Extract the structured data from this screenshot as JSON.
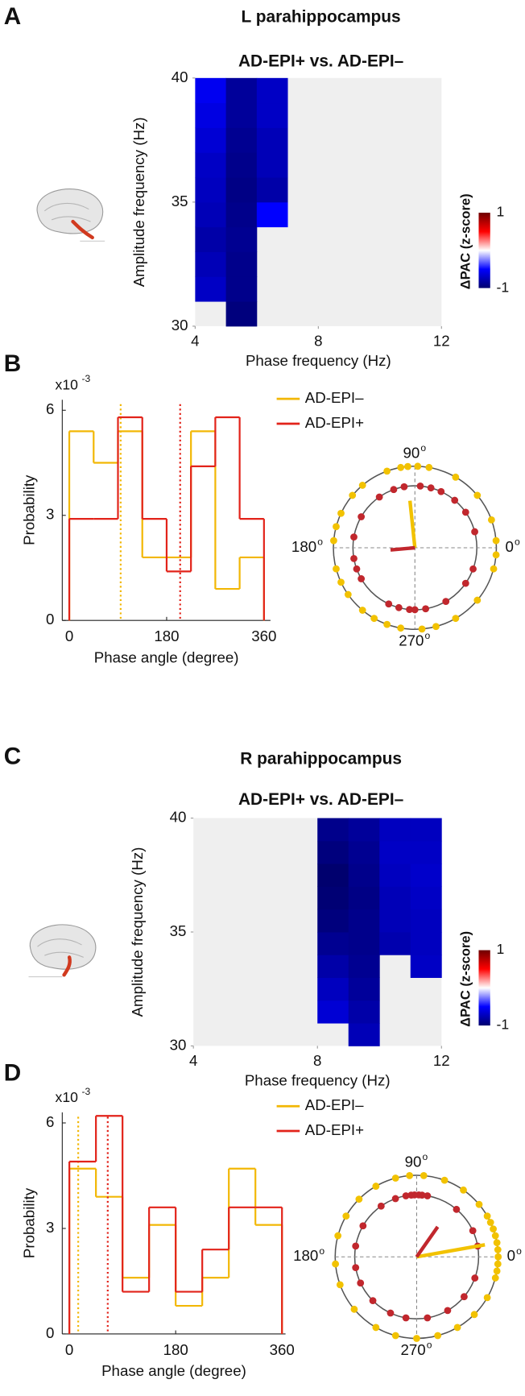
{
  "chart_data": [
    {
      "type": "heatmap",
      "panel": "A",
      "title": "L parahippocampus",
      "subtitle": "AD-EPI+ vs. AD-EPI–",
      "xlabel": "Phase frequency (Hz)",
      "ylabel": "Amplitude frequency (Hz)",
      "xbins": [
        4,
        5,
        6,
        7,
        8,
        9,
        10,
        11,
        12
      ],
      "ybins": [
        30,
        31,
        32,
        33,
        34,
        35,
        36,
        37,
        38,
        39,
        40
      ],
      "values": [
        [
          null,
          -0.95,
          null,
          null,
          null,
          null,
          null,
          null
        ],
        [
          -0.7,
          -0.9,
          null,
          null,
          null,
          null,
          null,
          null
        ],
        [
          -0.75,
          -0.9,
          null,
          null,
          null,
          null,
          null,
          null
        ],
        [
          -0.8,
          -0.88,
          null,
          null,
          null,
          null,
          null,
          null
        ],
        [
          -0.75,
          -0.9,
          -0.5,
          null,
          null,
          null,
          null,
          null
        ],
        [
          -0.72,
          -0.92,
          -0.8,
          null,
          null,
          null,
          null,
          null
        ],
        [
          -0.7,
          -0.9,
          -0.75,
          null,
          null,
          null,
          null,
          null
        ],
        [
          -0.65,
          -0.88,
          -0.75,
          null,
          null,
          null,
          null,
          null
        ],
        [
          -0.6,
          -0.85,
          -0.7,
          null,
          null,
          null,
          null,
          null
        ],
        [
          -0.55,
          -0.85,
          -0.7,
          null,
          null,
          null,
          null,
          null
        ]
      ],
      "xlim": [
        4,
        12
      ],
      "ylim": [
        30,
        40
      ],
      "xticks": [
        4,
        8,
        12
      ],
      "yticks": [
        30,
        35,
        40
      ],
      "colorbar": {
        "label": "ΔPAC (z-score)",
        "clim": [
          -1,
          1
        ],
        "ticks": [
          1,
          -1
        ]
      }
    },
    {
      "type": "histogram",
      "panel": "B",
      "xlabel": "Phase angle (degree)",
      "ylabel": "Probability",
      "y_multiplier": {
        "base": "x10",
        "exponent": "-3"
      },
      "bins": [
        0,
        45,
        90,
        135,
        180,
        225,
        270,
        315,
        360
      ],
      "series": [
        {
          "name": "AD-EPI–",
          "color": "#f2b705",
          "values": [
            5.4,
            4.5,
            5.4,
            1.8,
            1.8,
            5.4,
            0.9,
            1.8
          ],
          "mean": 95
        },
        {
          "name": "AD-EPI+",
          "color": "#e2231a",
          "values": [
            2.9,
            2.9,
            5.8,
            2.9,
            1.4,
            4.4,
            5.8,
            2.9
          ],
          "mean": 205
        }
      ],
      "xlim": [
        -13,
        372
      ],
      "ylim": [
        0,
        6.3
      ],
      "xticks": [
        0,
        180,
        360
      ],
      "yticks": [
        0,
        3,
        6
      ]
    },
    {
      "type": "polar",
      "angle_ticks": [
        90,
        180,
        270,
        0
      ],
      "tick_suffix": "o",
      "series": [
        {
          "color": "#f2c200",
          "angles": [
            5,
            20,
            40,
            60,
            80,
            88,
            95,
            100,
            110,
            130,
            140,
            155,
            165,
            175,
            195,
            205,
            215,
            230,
            240,
            250,
            260,
            275,
            285,
            300,
            320,
            345,
            355
          ],
          "mean_vector": {
            "angle": 96,
            "length": 0.58
          }
        },
        {
          "color": "#c1272d",
          "angles": [
            15,
            35,
            50,
            65,
            75,
            85,
            100,
            110,
            125,
            150,
            170,
            190,
            200,
            210,
            245,
            255,
            265,
            270,
            280,
            300,
            325,
            340
          ],
          "mean_vector": {
            "angle": 185,
            "length": 0.3
          }
        }
      ]
    },
    {
      "type": "heatmap",
      "panel": "C",
      "title": "R parahippocampus",
      "subtitle": "AD-EPI+ vs. AD-EPI–",
      "xlabel": "Phase frequency (Hz)",
      "ylabel": "Amplitude frequency (Hz)",
      "xbins": [
        4,
        5,
        6,
        7,
        8,
        9,
        10,
        11,
        12
      ],
      "ybins": [
        30,
        31,
        32,
        33,
        34,
        35,
        36,
        37,
        38,
        39,
        40
      ],
      "values": [
        [
          null,
          null,
          null,
          null,
          null,
          -0.75,
          null,
          null
        ],
        [
          null,
          null,
          null,
          null,
          -0.65,
          -0.8,
          null,
          null
        ],
        [
          null,
          null,
          null,
          null,
          -0.72,
          -0.85,
          null,
          null
        ],
        [
          null,
          null,
          null,
          null,
          -0.8,
          -0.88,
          null,
          -0.7
        ],
        [
          null,
          null,
          null,
          null,
          -0.88,
          -0.9,
          -0.78,
          -0.72
        ],
        [
          null,
          null,
          null,
          null,
          -0.95,
          -0.9,
          -0.75,
          -0.72
        ],
        [
          null,
          null,
          null,
          null,
          -0.98,
          -0.92,
          -0.75,
          -0.7
        ],
        [
          null,
          null,
          null,
          null,
          -1,
          -0.9,
          -0.72,
          -0.68
        ],
        [
          null,
          null,
          null,
          null,
          -0.95,
          -0.88,
          -0.7,
          -0.7
        ],
        [
          null,
          null,
          null,
          null,
          -0.9,
          -0.85,
          -0.72,
          -0.72
        ]
      ],
      "xlim": [
        4,
        12
      ],
      "ylim": [
        30,
        40
      ],
      "xticks": [
        4,
        8,
        12
      ],
      "yticks": [
        30,
        35,
        40
      ],
      "colorbar": {
        "label": "ΔPAC (z-score)",
        "clim": [
          -1,
          1
        ],
        "ticks": [
          1,
          -1
        ]
      }
    },
    {
      "type": "histogram",
      "panel": "D",
      "xlabel": "Phase angle (degree)",
      "ylabel": "Probability",
      "y_multiplier": {
        "base": "x10",
        "exponent": "-3"
      },
      "bins": [
        0,
        45,
        90,
        135,
        180,
        225,
        270,
        315,
        360
      ],
      "series": [
        {
          "name": "AD-EPI–",
          "color": "#f2b705",
          "values": [
            4.7,
            3.9,
            1.6,
            3.1,
            0.8,
            1.6,
            4.7,
            3.1
          ],
          "mean": 15
        },
        {
          "name": "AD-EPI+",
          "color": "#e2231a",
          "values": [
            4.9,
            6.2,
            1.2,
            3.6,
            1.2,
            2.4,
            3.6,
            3.6
          ],
          "mean": 65
        }
      ],
      "xlim": [
        -12,
        366
      ],
      "ylim": [
        0,
        6.3
      ],
      "xticks": [
        0,
        180,
        360
      ],
      "yticks": [
        0,
        3,
        6
      ]
    },
    {
      "type": "polar",
      "angle_ticks": [
        90,
        180,
        270,
        0
      ],
      "tick_suffix": "o",
      "series": [
        {
          "color": "#f2c200",
          "angles": [
            0,
            5,
            10,
            15,
            20,
            25,
            30,
            40,
            55,
            70,
            85,
            95,
            105,
            120,
            135,
            150,
            165,
            185,
            200,
            220,
            240,
            255,
            270,
            285,
            300,
            315,
            330,
            345,
            350,
            355
          ],
          "mean_vector": {
            "angle": 10,
            "length": 0.85
          }
        },
        {
          "color": "#c1272d",
          "angles": [
            10,
            25,
            50,
            80,
            85,
            88,
            92,
            95,
            100,
            110,
            125,
            150,
            170,
            190,
            205,
            225,
            245,
            260,
            280,
            300,
            320,
            340
          ],
          "mean_vector": {
            "angle": 55,
            "length": 0.45
          }
        }
      ]
    }
  ]
}
